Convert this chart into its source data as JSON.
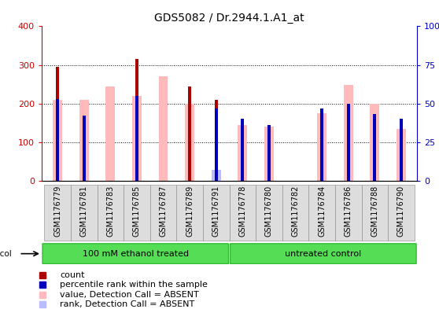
{
  "title": "GDS5082 / Dr.2944.1.A1_at",
  "samples": [
    "GSM1176779",
    "GSM1176781",
    "GSM1176783",
    "GSM1176785",
    "GSM1176787",
    "GSM1176789",
    "GSM1176791",
    "GSM1176778",
    "GSM1176780",
    "GSM1176782",
    "GSM1176784",
    "GSM1176786",
    "GSM1176788",
    "GSM1176790"
  ],
  "count_values": [
    295,
    0,
    0,
    315,
    0,
    245,
    210,
    0,
    0,
    0,
    0,
    0,
    0,
    0
  ],
  "percentile_values": [
    53,
    42,
    0,
    55,
    0,
    0,
    47,
    40,
    36,
    0,
    47,
    50,
    43,
    40
  ],
  "absent_value_values": [
    210,
    210,
    245,
    220,
    270,
    200,
    15,
    145,
    140,
    0,
    175,
    248,
    200,
    135
  ],
  "absent_rank_values": [
    0,
    0,
    0,
    0,
    0,
    0,
    7,
    0,
    0,
    0,
    0,
    0,
    0,
    0
  ],
  "protocol_groups": [
    {
      "label": "100 mM ethanol treated",
      "start": 0,
      "end": 7
    },
    {
      "label": "untreated control",
      "start": 7,
      "end": 14
    }
  ],
  "left_ylim": [
    0,
    400
  ],
  "right_ylim": [
    0,
    100
  ],
  "left_yticks": [
    0,
    100,
    200,
    300,
    400
  ],
  "right_yticks": [
    0,
    25,
    50,
    75,
    100
  ],
  "right_yticklabels": [
    "0",
    "25",
    "50",
    "75",
    "100%"
  ],
  "left_ycolor": "#cc0000",
  "right_ycolor": "#0000cc",
  "count_color": "#aa0000",
  "percentile_color": "#0000bb",
  "absent_value_color": "#ffbbbb",
  "absent_rank_color": "#bbbbff",
  "bg_color": "#ffffff",
  "tick_bg_color": "#dddddd",
  "protocol_bg": "#55dd55",
  "protocol_border": "#33bb33"
}
